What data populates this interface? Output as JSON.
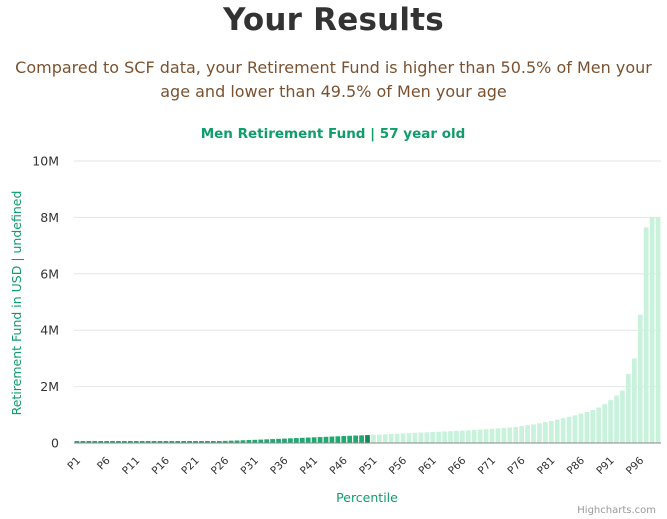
{
  "header": {
    "title": "Your Results",
    "subtitle": "Compared to SCF data, your Retirement Fund is higher than 50.5% of Men your age and lower than 49.5% of Men your age"
  },
  "credits": "Highcharts.com",
  "colors": {
    "highlight": "#1faa73",
    "user": "#0e8a5c",
    "upper": "#c9f2dd",
    "accent_text": "#0f9d6a",
    "grid": "#e6e6e6"
  },
  "chart_data": {
    "type": "bar",
    "title": "Men Retirement Fund | 57 year old",
    "xlabel": "Percentile",
    "ylabel": "Retirement Fund in USD | undefined",
    "ylim": [
      0,
      10000000
    ],
    "yticks": [
      0,
      2000000,
      4000000,
      6000000,
      8000000,
      10000000
    ],
    "ytick_labels": [
      "0",
      "2M",
      "4M",
      "6M",
      "8M",
      "10M"
    ],
    "xtick_labels": [
      "P1",
      "P6",
      "P11",
      "P16",
      "P21",
      "P26",
      "P31",
      "P36",
      "P41",
      "P46",
      "P51",
      "P56",
      "P61",
      "P66",
      "P71",
      "P76",
      "P81",
      "P86",
      "P91",
      "P96"
    ],
    "grid": true,
    "legend": "none",
    "user_percentile": 50,
    "categories": [
      "P1",
      "P2",
      "P3",
      "P4",
      "P5",
      "P6",
      "P7",
      "P8",
      "P9",
      "P10",
      "P11",
      "P12",
      "P13",
      "P14",
      "P15",
      "P16",
      "P17",
      "P18",
      "P19",
      "P20",
      "P21",
      "P22",
      "P23",
      "P24",
      "P25",
      "P26",
      "P27",
      "P28",
      "P29",
      "P30",
      "P31",
      "P32",
      "P33",
      "P34",
      "P35",
      "P36",
      "P37",
      "P38",
      "P39",
      "P40",
      "P41",
      "P42",
      "P43",
      "P44",
      "P45",
      "P46",
      "P47",
      "P48",
      "P49",
      "P50",
      "P51",
      "P52",
      "P53",
      "P54",
      "P55",
      "P56",
      "P57",
      "P58",
      "P59",
      "P60",
      "P61",
      "P62",
      "P63",
      "P64",
      "P65",
      "P66",
      "P67",
      "P68",
      "P69",
      "P70",
      "P71",
      "P72",
      "P73",
      "P74",
      "P75",
      "P76",
      "P77",
      "P78",
      "P79",
      "P80",
      "P81",
      "P82",
      "P83",
      "P84",
      "P85",
      "P86",
      "P87",
      "P88",
      "P89",
      "P90",
      "P91",
      "P92",
      "P93",
      "P94",
      "P95",
      "P96",
      "P97",
      "P98",
      "P99"
    ],
    "values": [
      0,
      0,
      0,
      0,
      0,
      1000,
      2000,
      3000,
      5000,
      7000,
      9000,
      11000,
      14000,
      17000,
      20000,
      24000,
      28000,
      32000,
      37000,
      42000,
      47000,
      52000,
      58000,
      64000,
      70000,
      76000,
      83000,
      90000,
      97000,
      105000,
      113000,
      121000,
      130000,
      139000,
      148000,
      157000,
      166000,
      175000,
      184000,
      193000,
      202000,
      211000,
      220000,
      229000,
      238000,
      247000,
      256000,
      265000,
      272000,
      280000,
      290000,
      300000,
      310000,
      320000,
      330000,
      340000,
      350000,
      360000,
      370000,
      380000,
      390000,
      400000,
      410000,
      420000,
      430000,
      440000,
      452000,
      465000,
      478000,
      492000,
      505000,
      520000,
      535000,
      550000,
      570000,
      600000,
      630000,
      660000,
      700000,
      740000,
      780000,
      830000,
      880000,
      930000,
      980000,
      1040000,
      1100000,
      1170000,
      1260000,
      1380000,
      1520000,
      1680000,
      1860000,
      2450000,
      3000000,
      4550000,
      7650000,
      8000000,
      8000000
    ]
  }
}
